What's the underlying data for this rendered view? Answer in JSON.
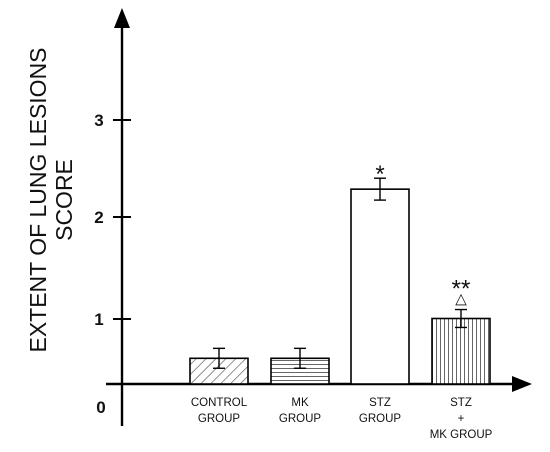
{
  "chart_data": {
    "type": "bar",
    "ylabel_lines": [
      "EXTENT OF LUNG LESIONS",
      "SCORE"
    ],
    "y_ticks": [
      "0",
      "1",
      "2",
      "3"
    ],
    "ylim": [
      0,
      4
    ],
    "categories": [
      [
        "CONTROL",
        "GROUP"
      ],
      [
        "MK",
        "GROUP"
      ],
      [
        "STZ",
        "GROUP"
      ],
      [
        "STZ",
        "+",
        "MK GROUP"
      ]
    ],
    "values": [
      0.6,
      0.6,
      2.3,
      1.0
    ],
    "errors": [
      0.1,
      0.1,
      0.11,
      0.09
    ],
    "patterns": [
      "diagonal",
      "horizontal",
      "none",
      "vertical"
    ],
    "annotations": [
      {
        "category_index": 2,
        "lines": [
          "*"
        ]
      },
      {
        "category_index": 3,
        "lines": [
          "**",
          "△"
        ]
      }
    ],
    "grid": false
  }
}
